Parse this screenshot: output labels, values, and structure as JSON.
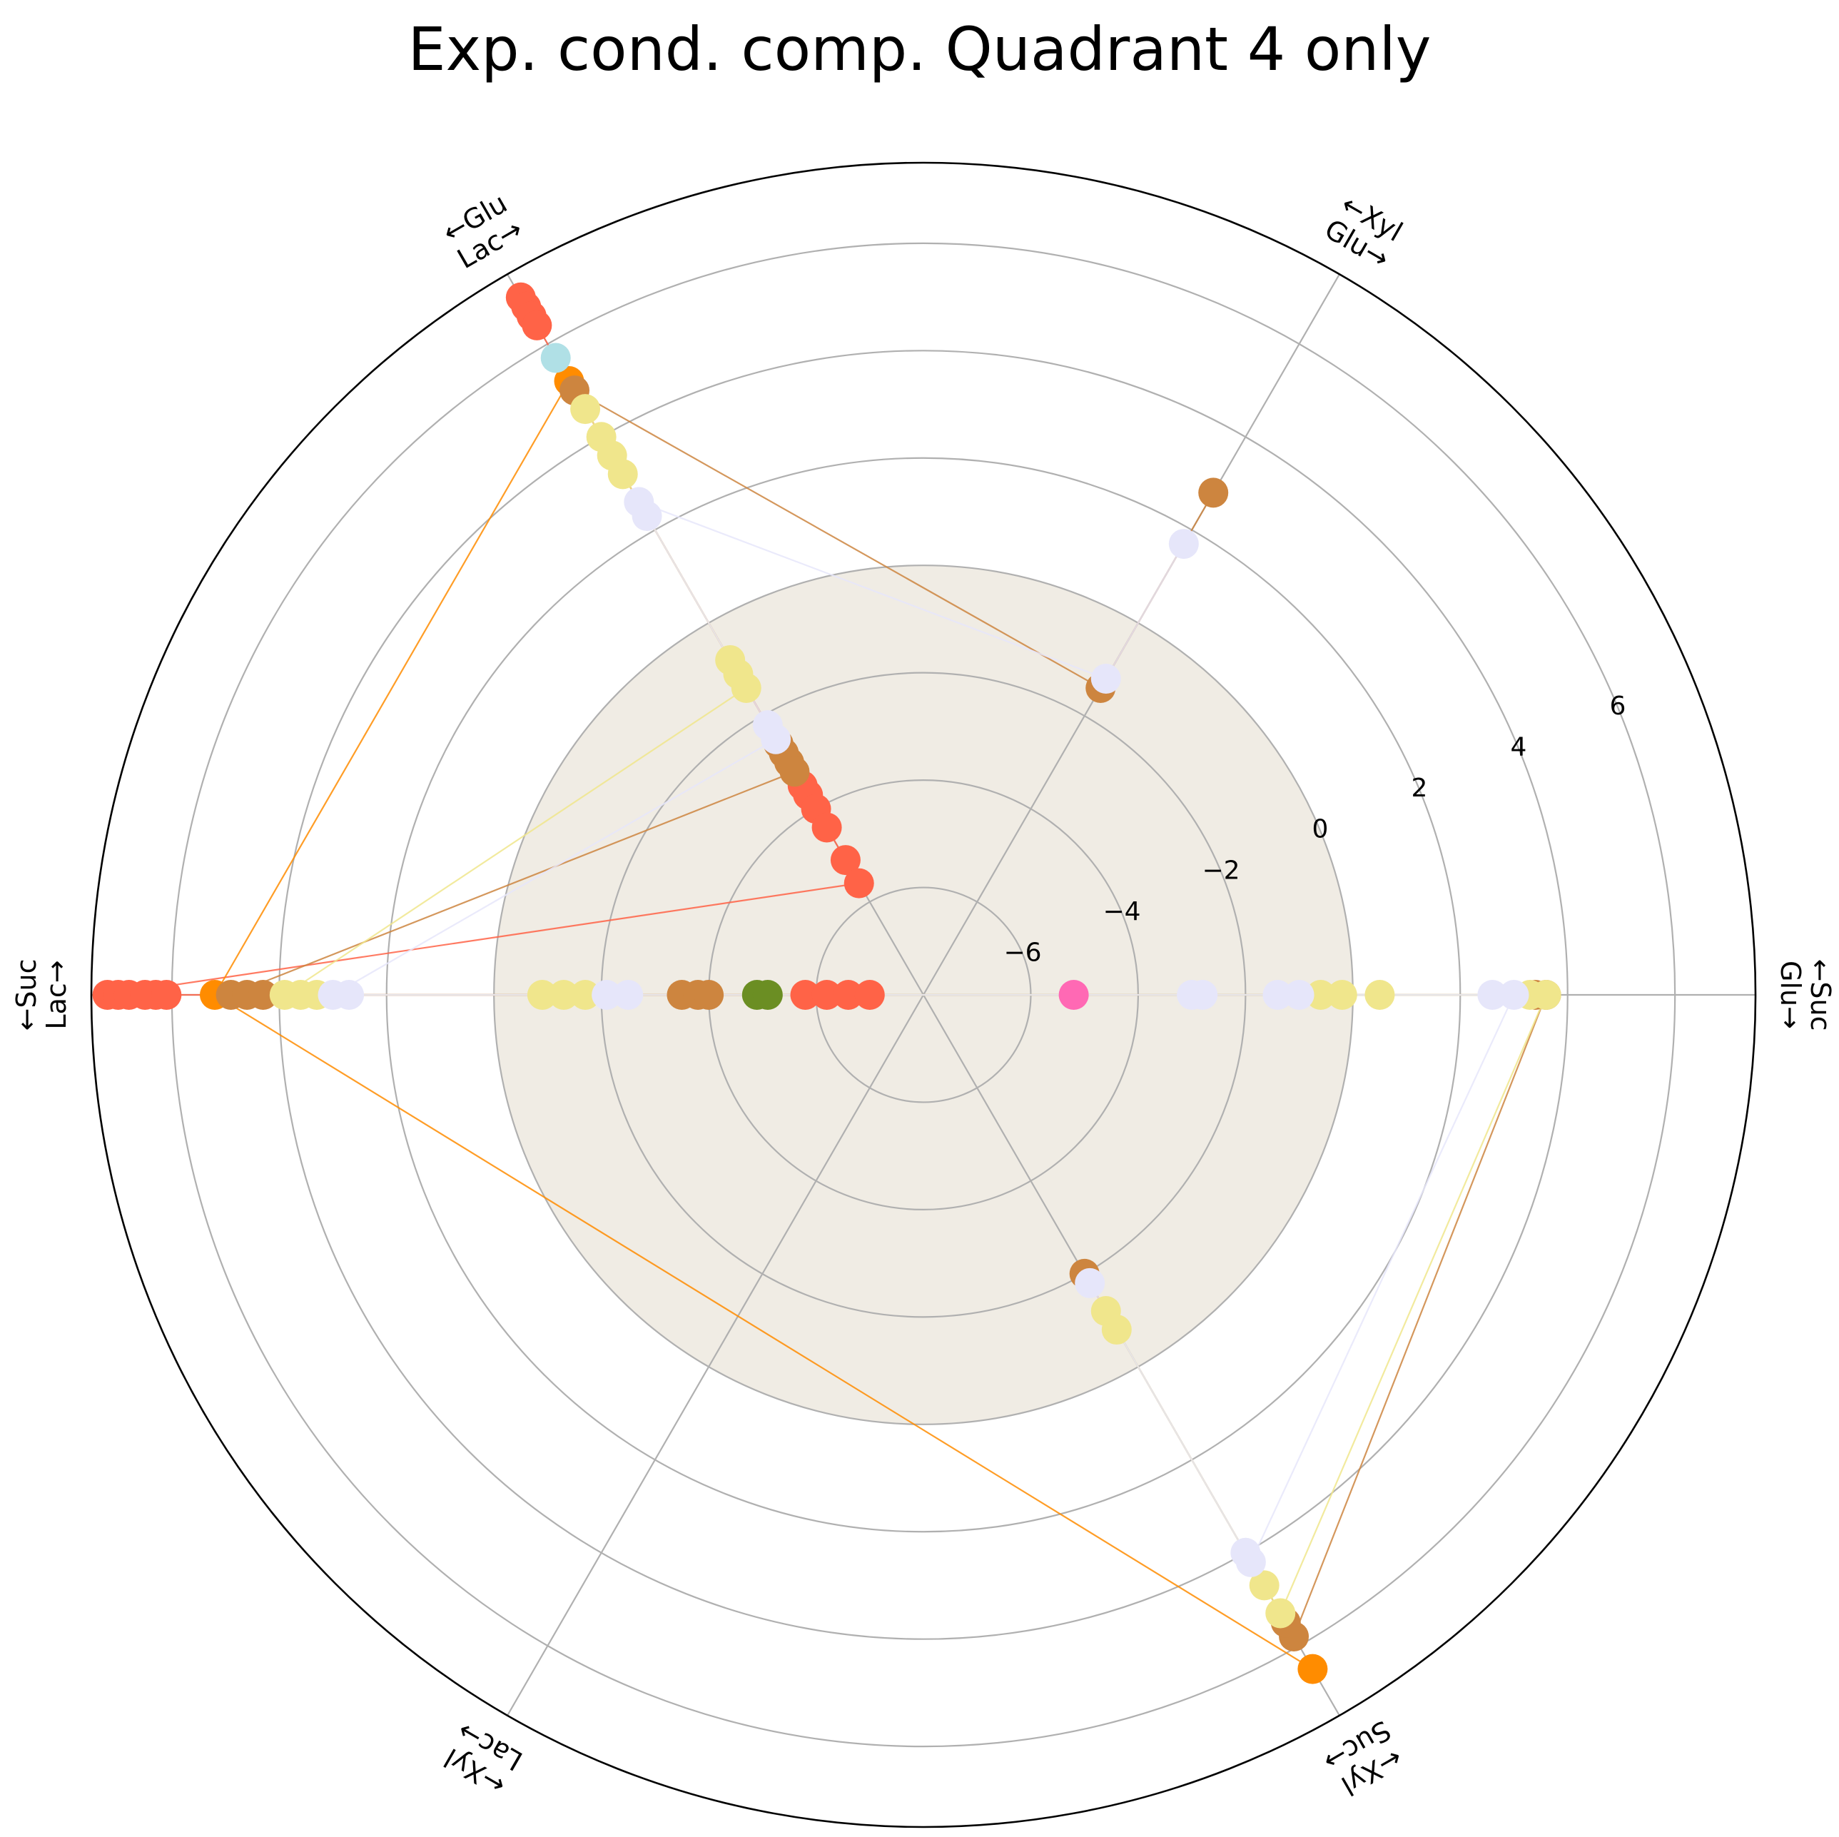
{
  "chart_data": {
    "type": "line",
    "projection": "polar-hexagonal",
    "title": "Exp. cond. comp. Quadrant 4 only",
    "rlim": [
      -8,
      7.5
    ],
    "radial_ticks": [
      -6,
      -4,
      -2,
      0,
      2,
      4,
      6
    ],
    "radial_tick_labels": [
      "−6",
      "−4",
      "−2",
      "0",
      "2",
      "4",
      "6"
    ],
    "grid": true,
    "shaded_region_below": 0,
    "shaded_region_color": "#f0ece4",
    "spokes": [
      {
        "angle_deg": 0,
        "label_line1": "←Suc",
        "label_line2": "Glu→"
      },
      {
        "angle_deg": 60,
        "label_line1": "←Xyl",
        "label_line2": "Glu→"
      },
      {
        "angle_deg": 120,
        "label_line1": "←Glu",
        "label_line2": "Lac→"
      },
      {
        "angle_deg": 180,
        "label_line1": "←Suc",
        "label_line2": "Lac→"
      },
      {
        "angle_deg": 240,
        "label_line1": "←Xyl",
        "label_line2": "Lac→"
      },
      {
        "angle_deg": 300,
        "label_line1": "←Xyl",
        "label_line2": "Suc→"
      }
    ],
    "series": [
      {
        "color": "#ff6347",
        "points": [
          [
            120,
            7.0
          ],
          [
            120,
            6.8
          ],
          [
            120,
            6.6
          ],
          [
            120,
            6.4
          ],
          [
            120,
            -3.5
          ],
          [
            120,
            -3.7
          ],
          [
            120,
            -4.0
          ],
          [
            120,
            -4.4
          ],
          [
            120,
            -5.1
          ],
          [
            120,
            -5.6
          ],
          [
            180,
            7.2
          ],
          [
            180,
            7.0
          ],
          [
            180,
            6.8
          ],
          [
            180,
            6.5
          ],
          [
            180,
            6.3
          ],
          [
            180,
            6.1
          ],
          [
            180,
            -5.8
          ],
          [
            180,
            -6.2
          ],
          [
            180,
            -6.6
          ],
          [
            180,
            -7.0
          ]
        ]
      },
      {
        "color": "#ff8c00",
        "points": [
          [
            120,
            5.2
          ],
          [
            180,
            5.2
          ],
          [
            300,
            6.5
          ]
        ]
      },
      {
        "color": "#cd853f",
        "points": [
          [
            60,
            2.8
          ],
          [
            60,
            -1.4
          ],
          [
            120,
            5.0
          ],
          [
            120,
            -2.6
          ],
          [
            120,
            -2.8
          ],
          [
            120,
            -3.0
          ],
          [
            120,
            -3.2
          ],
          [
            180,
            4.9
          ],
          [
            180,
            4.6
          ],
          [
            180,
            4.3
          ],
          [
            180,
            -3.5
          ],
          [
            180,
            -3.8
          ],
          [
            180,
            -4.0
          ],
          [
            0,
            3.4
          ],
          [
            0,
            3.6
          ],
          [
            300,
            5.8
          ],
          [
            300,
            5.5
          ],
          [
            300,
            -2.0
          ]
        ]
      },
      {
        "color": "#f0e68c",
        "points": [
          [
            120,
            4.6
          ],
          [
            120,
            4.0
          ],
          [
            120,
            3.6
          ],
          [
            120,
            3.2
          ],
          [
            120,
            -0.8
          ],
          [
            120,
            -1.1
          ],
          [
            120,
            -1.4
          ],
          [
            180,
            3.9
          ],
          [
            180,
            3.6
          ],
          [
            180,
            3.3
          ],
          [
            180,
            -0.9
          ],
          [
            180,
            -1.3
          ],
          [
            180,
            -1.7
          ],
          [
            0,
            -0.6
          ],
          [
            0,
            -0.2
          ],
          [
            0,
            0.5
          ],
          [
            0,
            3.3
          ],
          [
            0,
            3.6
          ],
          [
            300,
            5.3
          ],
          [
            300,
            4.7
          ],
          [
            300,
            -1.2
          ],
          [
            300,
            -0.8
          ]
        ]
      },
      {
        "color": "#e6e6fa",
        "points": [
          [
            60,
            1.7
          ],
          [
            60,
            -1.2
          ],
          [
            120,
            2.6
          ],
          [
            120,
            2.3
          ],
          [
            120,
            -2.2
          ],
          [
            120,
            -2.5
          ],
          [
            180,
            3.0
          ],
          [
            180,
            2.7
          ],
          [
            180,
            -2.1
          ],
          [
            180,
            -2.5
          ],
          [
            0,
            -3.0
          ],
          [
            0,
            -2.8
          ],
          [
            0,
            -1.4
          ],
          [
            0,
            -1.0
          ],
          [
            0,
            2.6
          ],
          [
            0,
            3.0
          ],
          [
            300,
            4.2
          ],
          [
            300,
            4.0
          ],
          [
            300,
            -1.8
          ]
        ]
      },
      {
        "color": "#b0e0e6",
        "points": [
          [
            120,
            5.7
          ]
        ]
      },
      {
        "color": "#6b8e23",
        "points": [
          [
            180,
            -4.9
          ],
          [
            180,
            -5.1
          ]
        ]
      },
      {
        "color": "#ff69b4",
        "points": [
          [
            0,
            -5.2
          ]
        ]
      }
    ]
  }
}
